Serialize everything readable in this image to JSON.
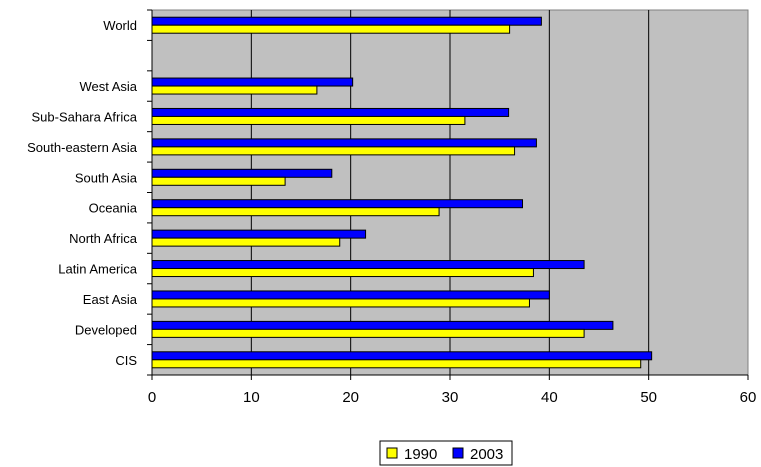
{
  "chart_data": {
    "type": "bar",
    "orientation": "horizontal",
    "categories": [
      "CIS",
      "Developed",
      "East Asia",
      "Latin America",
      "North Africa",
      "Oceania",
      "South Asia",
      "South-eastern Asia",
      "Sub-Sahara Africa",
      "West Asia",
      "",
      "World"
    ],
    "series": [
      {
        "name": "1990",
        "color": "#ffff00",
        "values": [
          49.2,
          43.5,
          38.0,
          38.4,
          18.9,
          28.9,
          13.4,
          36.5,
          31.5,
          16.6,
          null,
          36.0
        ]
      },
      {
        "name": "2003",
        "color": "#0000ff",
        "values": [
          50.3,
          46.4,
          40.0,
          43.5,
          21.5,
          37.3,
          18.1,
          38.7,
          35.9,
          20.2,
          null,
          39.2
        ]
      }
    ],
    "xlim": [
      0,
      60
    ],
    "xticks": [
      "0",
      "10",
      "20",
      "30",
      "40",
      "50",
      "60"
    ],
    "plot_background": "#c0c0c0",
    "grid": "vertical",
    "legend_position": "bottom"
  }
}
